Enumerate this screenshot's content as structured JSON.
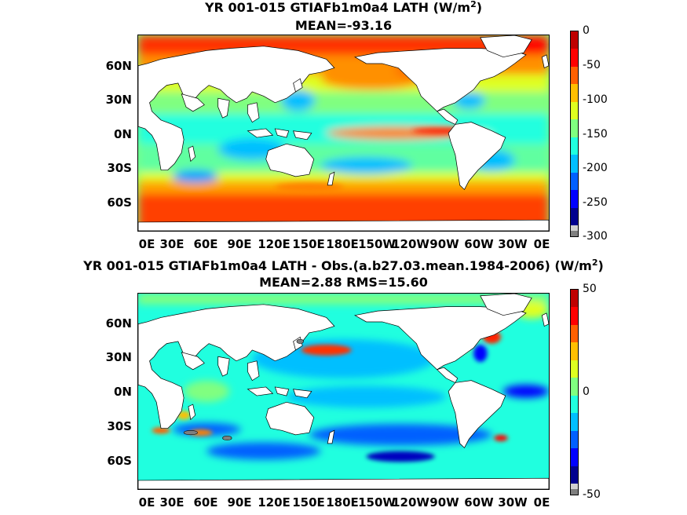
{
  "panel_top": {
    "title_prefix": "YR 001-015 GTIAFb1m0a4  LATH (W/m",
    "title_sup": "2",
    "title_suffix": ")",
    "stats": "MEAN=-93.16",
    "colorbar_ticks": [
      "0",
      "-50",
      "-100",
      "-150",
      "-200",
      "-250",
      "-300"
    ],
    "colorbar_range": [
      -300,
      0
    ]
  },
  "panel_bottom": {
    "title_prefix": "YR 001-015 GTIAFb1m0a4 LATH - Obs.(a.b27.03.mean.1984-2006) (W/m",
    "title_sup": "2",
    "title_suffix": ")",
    "stats": "MEAN=2.88 RMS=15.60",
    "colorbar_ticks": [
      "50",
      "0",
      "-50"
    ],
    "colorbar_range": [
      -50,
      50
    ]
  },
  "axes": {
    "lat_labels": [
      "60N",
      "30N",
      "0N",
      "30S",
      "60S"
    ],
    "lon_labels": [
      "0E",
      "30E",
      "60E",
      "90E",
      "120E",
      "150E",
      "180E",
      "150W",
      "120W",
      "90W",
      "60W",
      "30W",
      "0E"
    ]
  },
  "colors": {
    "land": "#ffffff",
    "missing": "#7f7f7f",
    "colormap": [
      "#00008f",
      "#0000ff",
      "#0060ff",
      "#00bfff",
      "#20ffdf",
      "#80ff80",
      "#dfff20",
      "#ffbf00",
      "#ff6000",
      "#ff0000",
      "#bf0000"
    ]
  },
  "icons": [
    "map-plot",
    "colorbar"
  ]
}
